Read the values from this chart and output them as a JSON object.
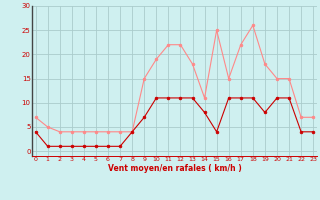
{
  "hours": [
    0,
    1,
    2,
    3,
    4,
    5,
    6,
    7,
    8,
    9,
    10,
    11,
    12,
    13,
    14,
    15,
    16,
    17,
    18,
    19,
    20,
    21,
    22,
    23
  ],
  "wind_mean": [
    4,
    1,
    1,
    1,
    1,
    1,
    1,
    1,
    4,
    7,
    11,
    11,
    11,
    11,
    8,
    4,
    11,
    11,
    11,
    8,
    11,
    11,
    4,
    4
  ],
  "wind_gust": [
    7,
    5,
    4,
    4,
    4,
    4,
    4,
    4,
    4,
    15,
    19,
    22,
    22,
    18,
    11,
    25,
    15,
    22,
    26,
    18,
    15,
    15,
    7,
    7
  ],
  "bg_color": "#cff0f0",
  "grid_color": "#aacccc",
  "mean_color": "#cc0000",
  "gust_color": "#ff8888",
  "xlabel": "Vent moyen/en rafales ( km/h )",
  "yticks": [
    0,
    5,
    10,
    15,
    20,
    25,
    30
  ],
  "xlim": [
    -0.3,
    23.3
  ],
  "ylim": [
    -1,
    30
  ]
}
